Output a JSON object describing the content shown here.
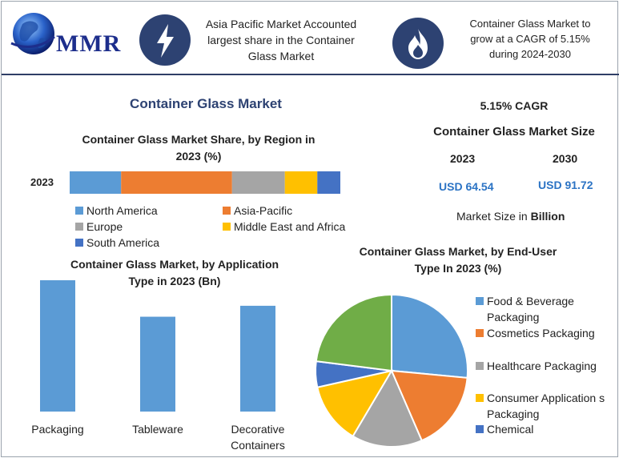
{
  "header": {
    "logo_text": "MMR",
    "highlight1": [
      "Asia Pacific Market Accounted",
      "largest share in the Container",
      "Glass Market"
    ],
    "highlight2": [
      "Container Glass Market to",
      "grow at a CAGR of 5.15%",
      "during 2024-2030"
    ],
    "icons": [
      "lightning-bolt-icon",
      "flame-icon",
      "globe-icon"
    ]
  },
  "main_title": "Container Glass Market",
  "market_size": {
    "cagr": "5.15% CAGR",
    "title": "Container Glass Market Size",
    "year1": "2023",
    "year2": "2030",
    "value1": "USD 64.54",
    "value2": "USD 91.72",
    "unit_prefix": "Market Size in",
    "unit": "Billion"
  },
  "colors": {
    "blue": "#5b9bd5",
    "orange": "#ed7d31",
    "gray": "#a5a5a5",
    "yellow": "#ffc000",
    "darkblue": "#4472c4",
    "green": "#70ad47",
    "navy": "#2d4272"
  },
  "chart_data": [
    {
      "type": "bar",
      "orientation": "horizontal-stacked",
      "title": [
        "Container Glass Market Share, by Region in",
        "2023 (%)"
      ],
      "categories": [
        "2023"
      ],
      "series": [
        {
          "name": "North America",
          "values": [
            19
          ],
          "color": "#5b9bd5"
        },
        {
          "name": "Asia-Pacific",
          "values": [
            41
          ],
          "color": "#ed7d31"
        },
        {
          "name": "Europe",
          "values": [
            19.5
          ],
          "color": "#a5a5a5"
        },
        {
          "name": "Middle East and Africa",
          "values": [
            12
          ],
          "color": "#ffc000"
        },
        {
          "name": "South America",
          "values": [
            8.5
          ],
          "color": "#4472c4"
        }
      ],
      "xlim": [
        0,
        100
      ],
      "legend": "bottom"
    },
    {
      "type": "bar",
      "title": [
        "Container Glass Market, by Application",
        "Type in 2023 (Bn)"
      ],
      "categories": [
        [
          "Packaging"
        ],
        [
          "Tableware"
        ],
        [
          "Decorative",
          "Containers"
        ]
      ],
      "values": [
        36,
        26,
        29
      ],
      "ylim": [
        0,
        36
      ],
      "color": "#5b9bd5"
    },
    {
      "type": "pie",
      "title": [
        "Container Glass Market, by End-User",
        "Type In 2023 (%)"
      ],
      "slices": [
        {
          "label": [
            "Food & Beverage",
            "Packaging"
          ],
          "value": 26.5,
          "color": "#5b9bd5"
        },
        {
          "label": [
            "Cosmetics Packaging"
          ],
          "value": 17,
          "color": "#ed7d31"
        },
        {
          "label": [
            "Healthcare Packaging"
          ],
          "value": 15,
          "color": "#a5a5a5"
        },
        {
          "label": [
            "Consumer Application s",
            "Packaging"
          ],
          "value": 13,
          "color": "#ffc000"
        },
        {
          "label": [
            "Chemical"
          ],
          "value": 5.5,
          "color": "#4472c4"
        },
        {
          "label": [],
          "value": 23,
          "color": "#70ad47"
        }
      ],
      "legend": "right"
    }
  ]
}
